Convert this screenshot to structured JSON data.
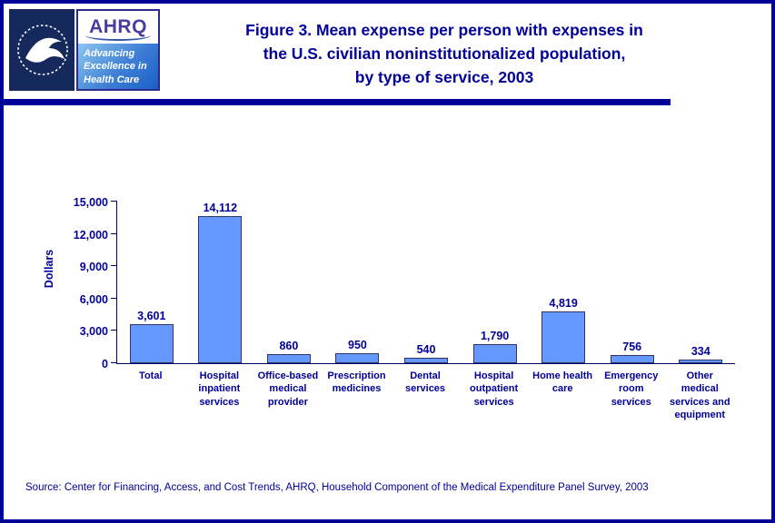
{
  "colors": {
    "navy_text": "#000099",
    "bar_fill": "#6699FF",
    "bar_border": "#333366",
    "axis": "#000066",
    "border": "#000099"
  },
  "header": {
    "logos": {
      "hhs_logo": "hhs-seal",
      "ahrq_text": "AHRQ",
      "ahrq_tagline": "Advancing\nExcellence in\nHealth Care"
    },
    "title_lines": [
      "Figure 3. Mean expense per person with expenses in",
      "the U.S. civilian noninstitutionalized population,",
      "by type of service, 2003"
    ]
  },
  "chart_data": {
    "type": "bar",
    "title": "Figure 3. Mean expense per person with expenses in the U.S. civilian noninstitutionalized population, by type of service, 2003",
    "xlabel": "",
    "ylabel": "Dollars",
    "ylim": [
      0,
      15000
    ],
    "yticks": [
      0,
      3000,
      6000,
      9000,
      12000,
      15000
    ],
    "ytick_labels": [
      "0",
      "3,000",
      "6,000",
      "9,000",
      "12,000",
      "15,000"
    ],
    "categories": [
      "Total",
      "Hospital inpatient services",
      "Office-based medical provider",
      "Prescription medicines",
      "Dental services",
      "Hospital outpatient services",
      "Home health care",
      "Emergency room services",
      "Other medical services and equipment"
    ],
    "category_display": [
      "Total",
      "Hospital\ninpatient\nservices",
      "Office-based\nmedical\nprovider",
      "Prescription\nmedicines",
      "Dental\nservices",
      "Hospital\noutpatient\nservices",
      "Home health\ncare",
      "Emergency\nroom\nservices",
      "Other\nmedical\nservices and\nequipment"
    ],
    "values": [
      3601,
      14112,
      860,
      950,
      540,
      1790,
      4819,
      756,
      334
    ],
    "value_labels": [
      "3,601",
      "14,112",
      "860",
      "950",
      "540",
      "1,790",
      "4,819",
      "756",
      "334"
    ],
    "grid": false,
    "legend": false,
    "bar_color": "#6699FF",
    "bar_border_color": "#333366"
  },
  "footer": {
    "source": "Source: Center for Financing, Access, and Cost Trends, AHRQ, Household Component of the Medical Expenditure Panel Survey, 2003"
  }
}
